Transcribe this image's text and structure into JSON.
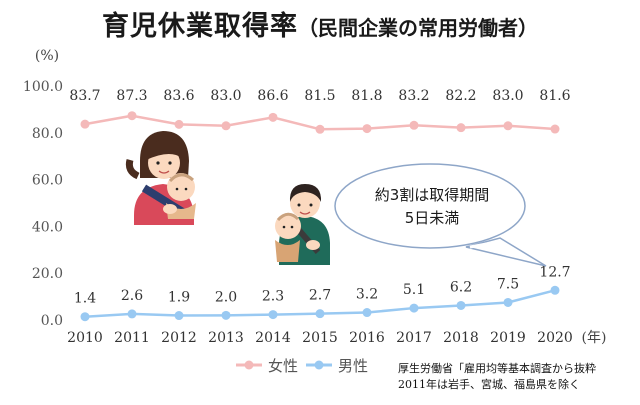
{
  "chart_data": {
    "type": "line",
    "title": "育児休業取得率",
    "subtitle": "（民間企業の常用労働者）",
    "ylabel": "(%)",
    "xunit": "(年)",
    "ylim": [
      0,
      100
    ],
    "yticks": [
      "0.0",
      "20.0",
      "40.0",
      "60.0",
      "80.0",
      "100.0"
    ],
    "yticks_values": [
      0,
      20,
      40,
      60,
      80,
      100
    ],
    "x": [
      2010,
      2011,
      2012,
      2013,
      2014,
      2015,
      2016,
      2017,
      2018,
      2019,
      2020
    ],
    "series": [
      {
        "name": "女性",
        "color": "#f4b9b9",
        "values": [
          83.7,
          87.3,
          83.6,
          83.0,
          86.6,
          81.5,
          81.8,
          83.2,
          82.2,
          83.0,
          81.6
        ],
        "labels": [
          "83.7",
          "87.3",
          "83.6",
          "83.0",
          "86.6",
          "81.5",
          "81.8",
          "83.2",
          "82.2",
          "83.0",
          "81.6"
        ]
      },
      {
        "name": "男性",
        "color": "#99c9f2",
        "values": [
          1.4,
          2.6,
          1.9,
          2.0,
          2.3,
          2.7,
          3.2,
          5.1,
          6.2,
          7.5,
          12.7
        ],
        "labels": [
          "1.4",
          "2.6",
          "1.9",
          "2.0",
          "2.3",
          "2.7",
          "3.2",
          "5.1",
          "6.2",
          "7.5",
          "12.7"
        ]
      }
    ],
    "legend": "bottom-center",
    "grid": false,
    "annotation": [
      "約3割は取得期間",
      "5日未満"
    ]
  },
  "source": [
    "厚生労働省「雇用均等基本調査から抜粋",
    "2011年は岩手、宮城、福島県を除く"
  ]
}
